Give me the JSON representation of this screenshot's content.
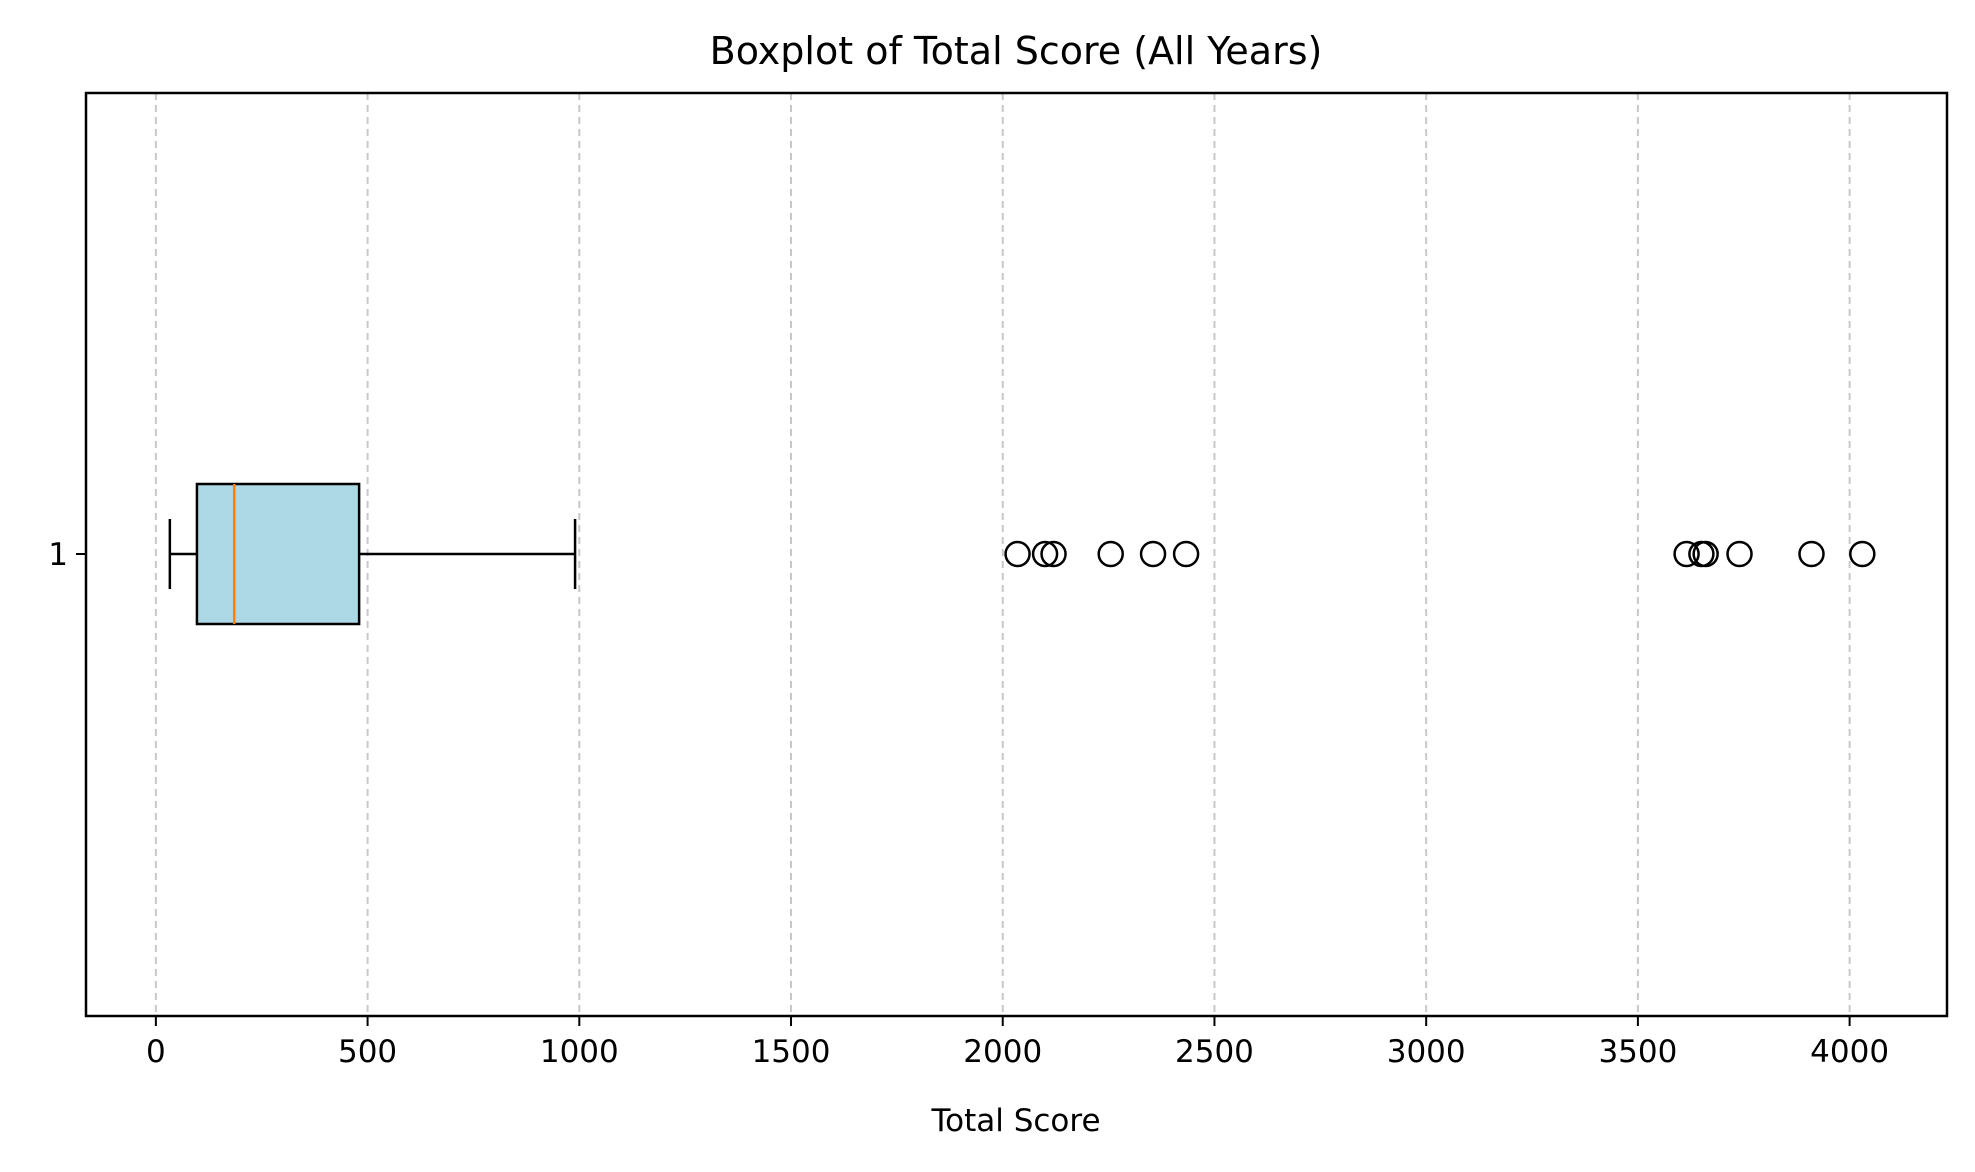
{
  "chart_data": {
    "type": "boxplot",
    "orientation": "horizontal",
    "title": "Boxplot of Total Score (All Years)",
    "xlabel": "Total Score",
    "ylabel": "",
    "xlim": [
      -165,
      4230
    ],
    "xticks": [
      0,
      500,
      1000,
      1500,
      2000,
      2500,
      3000,
      3500,
      4000
    ],
    "xtick_labels": [
      "0",
      "500",
      "1000",
      "1500",
      "2000",
      "2500",
      "3000",
      "3500",
      "4000"
    ],
    "categories": [
      "1"
    ],
    "grid": "x-axis dashed",
    "series": [
      {
        "category": "1",
        "whisker_low": 33,
        "q1": 97,
        "median": 185,
        "q3": 480,
        "whisker_high": 990,
        "outliers": [
          2035,
          2100,
          2120,
          2255,
          2355,
          2433,
          3615,
          3650,
          3660,
          3740,
          3910,
          4030
        ]
      }
    ],
    "colors": {
      "box_fill": "#add8e6",
      "median": "#ff7f0e",
      "lines": "#000000",
      "grid": "#c8c8c8"
    }
  }
}
